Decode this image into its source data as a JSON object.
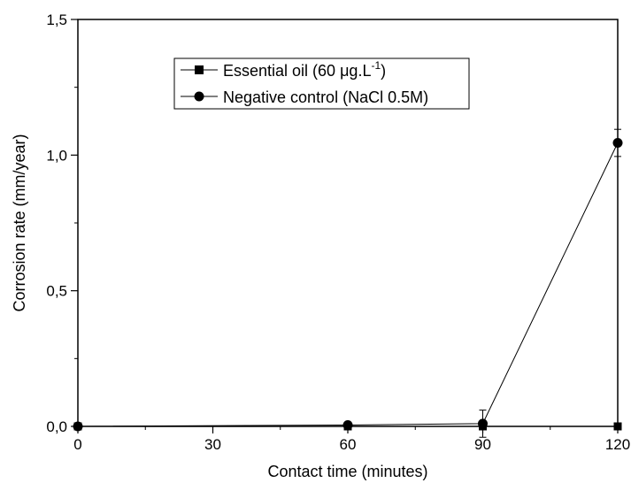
{
  "chart_data": {
    "type": "line",
    "xlabel": "Contact time (minutes)",
    "ylabel": "Corrosion rate (mm/year)",
    "xlim": [
      0,
      120
    ],
    "ylim": [
      0,
      1.5
    ],
    "xticks": [
      "0",
      "30",
      "60",
      "90",
      "120"
    ],
    "yticks": [
      "0,0",
      "0,5",
      "1,0",
      "1,5"
    ],
    "x": [
      0,
      60,
      90,
      120
    ],
    "legend_position": "top-center",
    "grid": false,
    "series": [
      {
        "name": "Essential oil (60 μg.L",
        "name_sup": "-1",
        "name_end": ")",
        "marker": "square",
        "values": [
          0.0,
          0.0,
          0.0,
          0.0
        ],
        "errors": [
          0.0,
          0.0,
          0.0,
          0.0
        ]
      },
      {
        "name": "Negative control (NaCl 0.5M)",
        "marker": "circle",
        "values": [
          0.0,
          0.005,
          0.01,
          1.045
        ],
        "errors": [
          0.0,
          0.0,
          0.05,
          0.05
        ]
      }
    ]
  }
}
